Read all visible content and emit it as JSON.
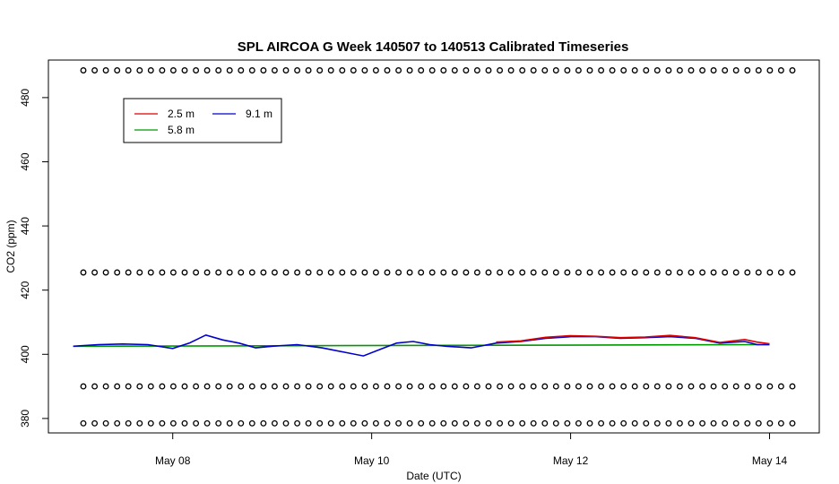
{
  "chart_data": {
    "type": "line",
    "title": "SPL AIRCOA G  Week 140507 to 140513  Calibrated Timeseries",
    "xlabel": "Date (UTC)",
    "ylabel": "CO2 (ppm)",
    "x_ticks": [
      {
        "date": "2014-05-08",
        "label": "May 08"
      },
      {
        "date": "2014-05-10",
        "label": "May 10"
      },
      {
        "date": "2014-05-12",
        "label": "May 12"
      },
      {
        "date": "2014-05-14",
        "label": "May 14"
      }
    ],
    "xlim": [
      "2014-05-06T18:00",
      "2014-05-14T12:00"
    ],
    "y_ticks": [
      380,
      400,
      420,
      440,
      460,
      480
    ],
    "ylim": [
      375.5,
      491.7
    ],
    "grid": false,
    "legend": {
      "placement": "top-left",
      "entries": [
        {
          "name": "2.5 m",
          "color": "#dd0000"
        },
        {
          "name": "5.8 m",
          "color": "#009900"
        },
        {
          "name": "9.1 m",
          "color": "#0000cc"
        }
      ]
    },
    "series": [
      {
        "name": "9.1 m",
        "color": "#0000cc",
        "x": [
          "2014-05-07T00:00",
          "2014-05-07T06:00",
          "2014-05-07T12:00",
          "2014-05-07T18:00",
          "2014-05-08T00:00",
          "2014-05-08T04:00",
          "2014-05-08T08:00",
          "2014-05-08T12:00",
          "2014-05-08T16:00",
          "2014-05-08T20:00",
          "2014-05-09T00:00",
          "2014-05-09T06:00",
          "2014-05-09T12:00",
          "2014-05-09T18:00",
          "2014-05-09T22:00",
          "2014-05-10T02:00",
          "2014-05-10T06:00",
          "2014-05-10T10:00",
          "2014-05-10T14:00",
          "2014-05-10T18:00",
          "2014-05-11T00:00",
          "2014-05-11T06:00",
          "2014-05-11T12:00",
          "2014-05-11T18:00",
          "2014-05-12T00:00",
          "2014-05-12T06:00",
          "2014-05-12T12:00",
          "2014-05-12T18:00",
          "2014-05-13T00:00",
          "2014-05-13T06:00",
          "2014-05-13T12:00",
          "2014-05-13T18:00",
          "2014-05-13T21:00",
          "2014-05-14T00:00"
        ],
        "values": [
          402.5,
          403.0,
          403.2,
          403.0,
          401.8,
          403.5,
          406.0,
          404.5,
          403.5,
          402.0,
          402.5,
          403.0,
          402.0,
          400.5,
          399.5,
          401.5,
          403.5,
          404.0,
          403.0,
          402.5,
          402.0,
          403.5,
          404.0,
          405.0,
          405.5,
          405.5,
          405.0,
          405.2,
          405.5,
          405.0,
          403.5,
          404.0,
          403.0,
          403.0
        ]
      },
      {
        "name": "2.5 m",
        "color": "#dd0000",
        "x": [
          "2014-05-11T06:00",
          "2014-05-11T12:00",
          "2014-05-11T18:00",
          "2014-05-12T00:00",
          "2014-05-12T06:00",
          "2014-05-12T12:00",
          "2014-05-12T18:00",
          "2014-05-13T00:00",
          "2014-05-13T06:00",
          "2014-05-13T12:00",
          "2014-05-13T18:00",
          "2014-05-13T21:00",
          "2014-05-14T00:00"
        ],
        "values": [
          403.8,
          404.2,
          405.3,
          405.8,
          405.6,
          405.2,
          405.4,
          405.9,
          405.2,
          403.7,
          404.6,
          403.8,
          403.3
        ]
      },
      {
        "name": "5.8 m",
        "color": "#009900",
        "x": [
          "2014-05-07T00:00",
          "2014-05-14T00:00"
        ],
        "values": [
          402.5,
          403.0
        ]
      }
    ],
    "marker_rows": [
      488.5,
      425.5,
      390.0,
      378.5
    ]
  }
}
